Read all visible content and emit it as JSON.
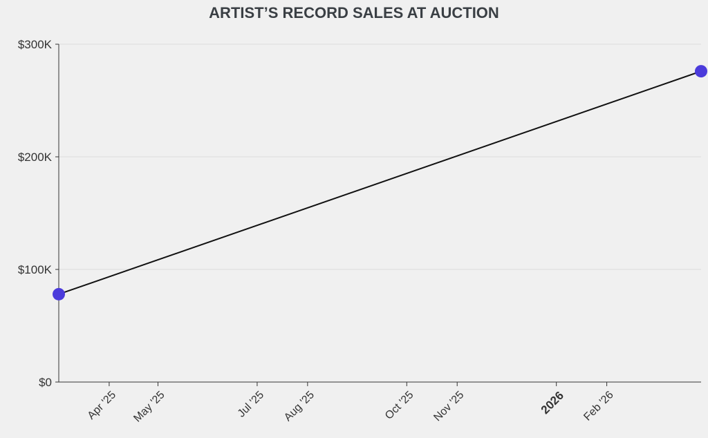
{
  "chart_data": {
    "type": "line",
    "title": "ARTIST’S RECORD SALES AT AUCTION",
    "xlabel": "",
    "ylabel": "",
    "x_axis": {
      "type": "date",
      "range": [
        "2025-03-01",
        "2026-03-31"
      ],
      "ticks": [
        {
          "date": "2025-04-01",
          "label": "Apr '25",
          "bold": false
        },
        {
          "date": "2025-05-01",
          "label": "May '25",
          "bold": false
        },
        {
          "date": "2025-07-01",
          "label": "Jul '25",
          "bold": false
        },
        {
          "date": "2025-08-01",
          "label": "Aug '25",
          "bold": false
        },
        {
          "date": "2025-10-01",
          "label": "Oct '25",
          "bold": false
        },
        {
          "date": "2025-11-01",
          "label": "Nov '25",
          "bold": false
        },
        {
          "date": "2026-01-01",
          "label": "2026",
          "bold": true
        },
        {
          "date": "2026-02-01",
          "label": "Feb '26",
          "bold": false
        }
      ]
    },
    "y_axis": {
      "range": [
        0,
        300000
      ],
      "ticks": [
        {
          "value": 0,
          "label": "$0"
        },
        {
          "value": 100000,
          "label": "$100K"
        },
        {
          "value": 200000,
          "label": "$200K"
        },
        {
          "value": 300000,
          "label": "$300K"
        }
      ]
    },
    "grid": true,
    "legend": "none",
    "series": [
      {
        "line_color": "#111111",
        "marker_color": "#4b3bdb",
        "points": [
          {
            "x": "2025-03-01",
            "y": 78000
          },
          {
            "x": "2026-03-31",
            "y": 276000
          }
        ]
      }
    ]
  }
}
